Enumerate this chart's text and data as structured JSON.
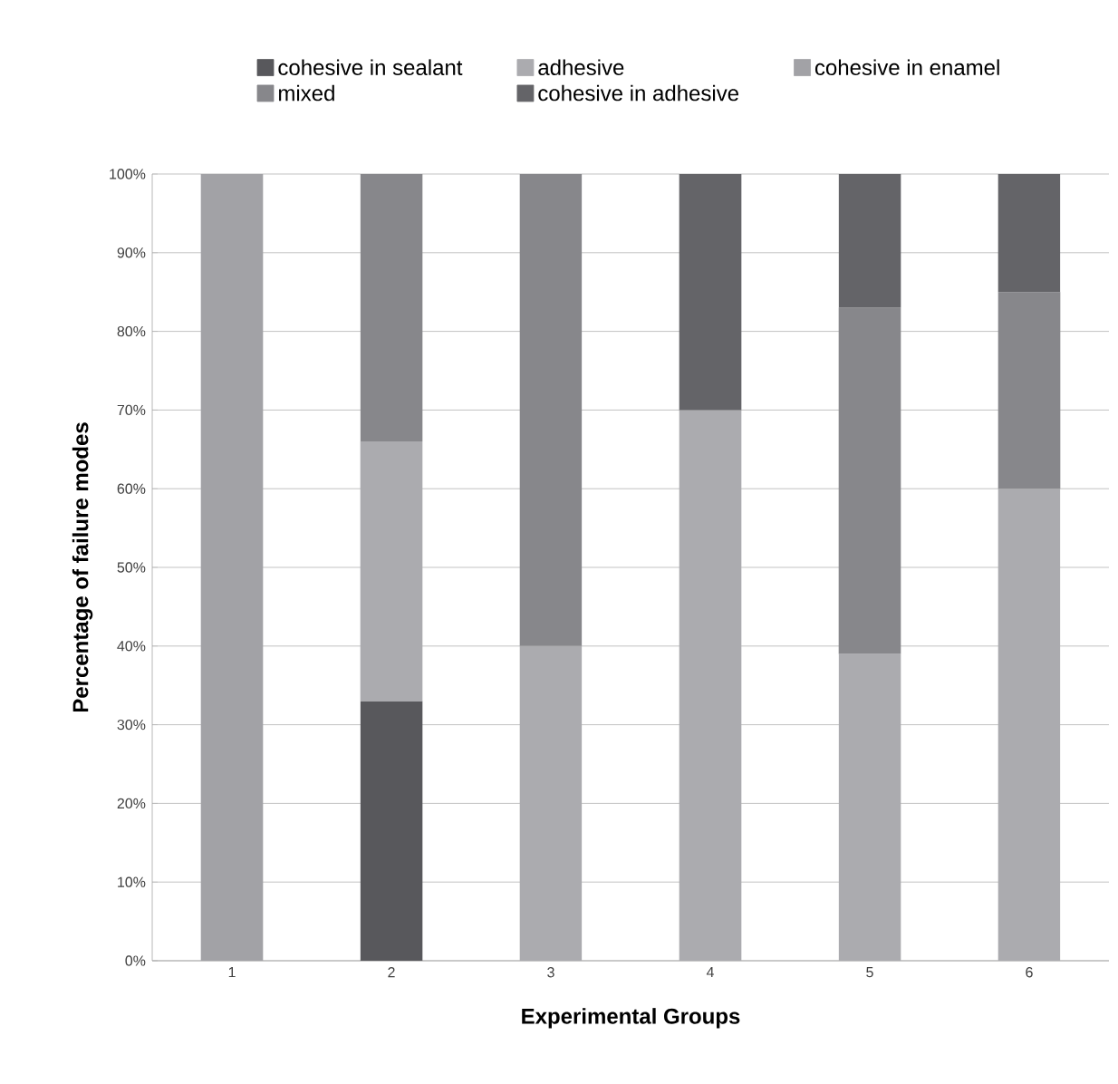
{
  "chart_data": {
    "type": "bar",
    "stacked": true,
    "xlabel": "Experimental Groups",
    "ylabel": "Percentage of failure modes",
    "categories": [
      "1",
      "2",
      "3",
      "4",
      "5",
      "6"
    ],
    "series": [
      {
        "name": "cohesive in sealant",
        "color": "#58585c",
        "values": [
          null,
          33,
          null,
          null,
          null,
          null
        ]
      },
      {
        "name": "adhesive",
        "color": "#ababaf",
        "values": [
          null,
          33,
          40,
          70,
          39,
          60
        ]
      },
      {
        "name": "cohesive in enamel",
        "color": "#a2a2a6",
        "values": [
          100,
          null,
          null,
          null,
          null,
          null
        ]
      },
      {
        "name": "mixed",
        "color": "#87878b",
        "values": [
          null,
          34,
          60,
          null,
          44,
          25
        ]
      },
      {
        "name": "cohesive in adhesive",
        "color": "#646468",
        "values": [
          null,
          null,
          null,
          30,
          17,
          15
        ]
      }
    ],
    "ylim": [
      0,
      100
    ],
    "yticks": [
      {
        "value": 0,
        "label": "0%"
      },
      {
        "value": 10,
        "label": "10%"
      },
      {
        "value": 20,
        "label": "20%"
      },
      {
        "value": 30,
        "label": "30%"
      },
      {
        "value": 40,
        "label": "40%"
      },
      {
        "value": 50,
        "label": "50%"
      },
      {
        "value": 60,
        "label": "60%"
      },
      {
        "value": 70,
        "label": "70%"
      },
      {
        "value": 80,
        "label": "80%"
      },
      {
        "value": 90,
        "label": "90%"
      },
      {
        "value": 100,
        "label": "100%"
      }
    ],
    "grid": "y",
    "legend": "top"
  }
}
